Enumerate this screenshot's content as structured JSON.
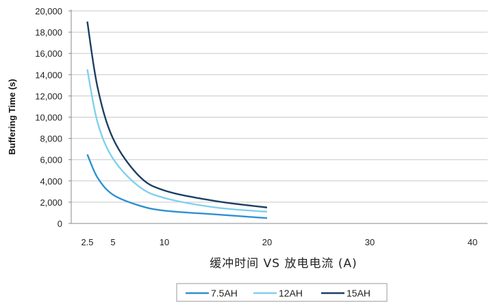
{
  "chart_data": {
    "type": "line",
    "title": "",
    "xlabel": "缓冲时间 VS 放电电流 (A)",
    "ylabel": "Buffering Time (s)",
    "xlim": [
      0,
      40
    ],
    "ylim": [
      0,
      20000
    ],
    "xticks": [
      2.5,
      5,
      10,
      20,
      30,
      40
    ],
    "xtick_labels": [
      "2.5",
      "5",
      "10",
      "20",
      "30",
      "40"
    ],
    "yticks": [
      0,
      2000,
      4000,
      6000,
      8000,
      10000,
      12000,
      14000,
      16000,
      18000,
      20000
    ],
    "ytick_labels": [
      "0",
      "2,000",
      "4,000",
      "6,000",
      "8,000",
      "10,000",
      "12,000",
      "14,000",
      "16,000",
      "18,000",
      "20,000"
    ],
    "grid": "horizontal",
    "legend_position": "bottom",
    "series": [
      {
        "name": "7.5AH",
        "color": "#2F8FD0",
        "x": [
          2.5,
          3.5,
          5,
          7.5,
          10,
          15,
          20
        ],
        "y": [
          6500,
          4300,
          2700,
          1700,
          1200,
          850,
          500
        ]
      },
      {
        "name": "12AH",
        "color": "#7FD0EE",
        "x": [
          2.5,
          3.5,
          5,
          7.5,
          10,
          15,
          20
        ],
        "y": [
          14500,
          9500,
          6100,
          3500,
          2400,
          1500,
          1100
        ]
      },
      {
        "name": "15AH",
        "color": "#1A3F63",
        "x": [
          2.5,
          3.5,
          5,
          7.5,
          10,
          15,
          20
        ],
        "y": [
          19000,
          12800,
          8000,
          4500,
          3100,
          2100,
          1500
        ]
      }
    ]
  }
}
